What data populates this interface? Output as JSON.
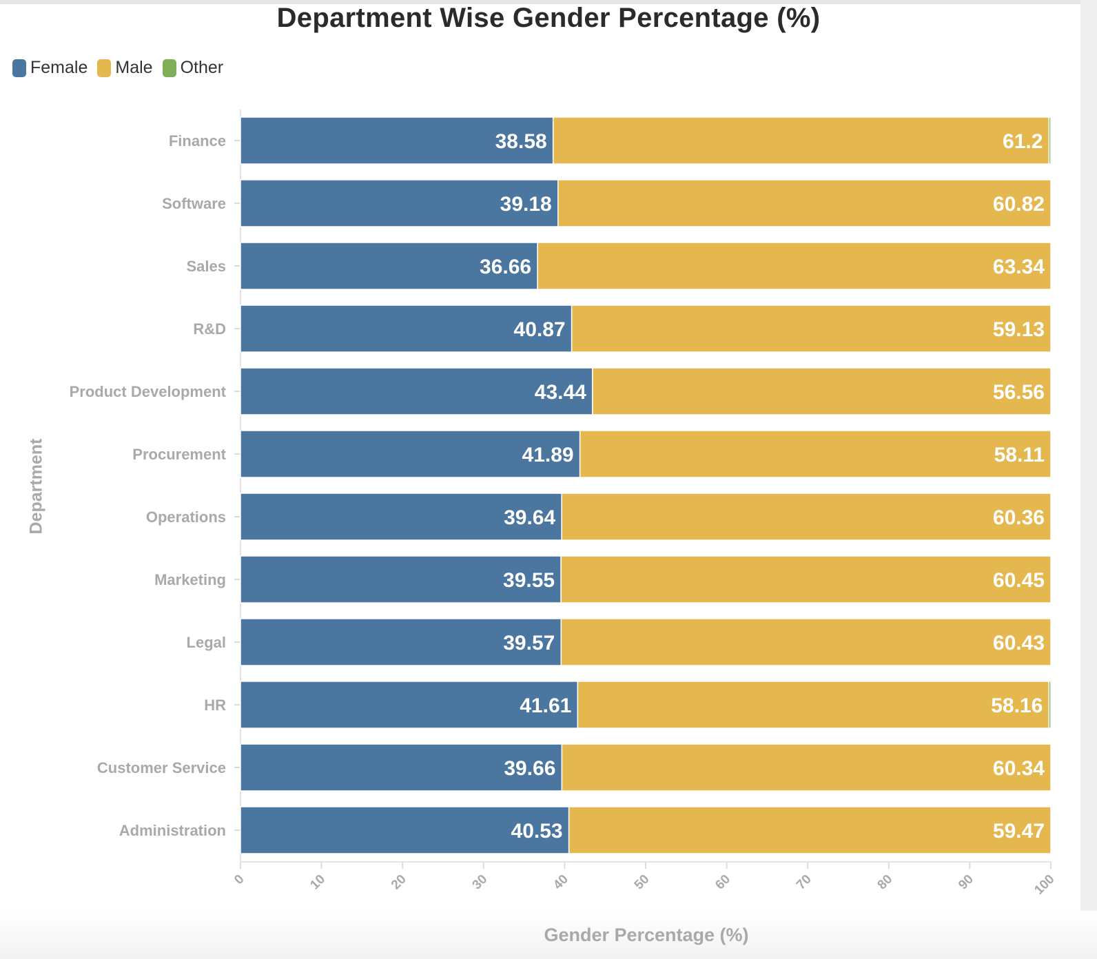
{
  "title": "Department Wise Gender Percentage (%)",
  "legend": [
    {
      "label": "Female",
      "color": "#4a76a0"
    },
    {
      "label": "Male",
      "color": "#e5b84f"
    },
    {
      "label": "Other",
      "color": "#7fae58"
    }
  ],
  "chart_data": {
    "type": "bar",
    "orientation": "horizontal",
    "stacked": true,
    "title": "Department Wise Gender Percentage (%)",
    "xlabel": "Gender Percentage (%)",
    "ylabel": "Department",
    "xlim": [
      0,
      100
    ],
    "xticks": [
      "0",
      "10",
      "20",
      "30",
      "40",
      "50",
      "60",
      "70",
      "80",
      "90",
      "100"
    ],
    "legend_position": "top-left",
    "grid": false,
    "categories": [
      "Finance",
      "Software",
      "Sales",
      "R&D",
      "Product Development",
      "Procurement",
      "Operations",
      "Marketing",
      "Legal",
      "HR",
      "Customer Service",
      "Administration"
    ],
    "series": [
      {
        "name": "Female",
        "color": "#4a76a0",
        "values": [
          38.58,
          39.18,
          36.66,
          40.87,
          43.44,
          41.89,
          39.64,
          39.55,
          39.57,
          41.61,
          39.66,
          40.53
        ],
        "labels": [
          "38.58",
          "39.18",
          "36.66",
          "40.87",
          "43.44",
          "41.89",
          "39.64",
          "39.55",
          "39.57",
          "41.61",
          "39.66",
          "40.53"
        ]
      },
      {
        "name": "Male",
        "color": "#e5b84f",
        "values": [
          61.2,
          60.82,
          63.34,
          59.13,
          56.56,
          58.11,
          60.36,
          60.45,
          60.43,
          58.16,
          60.34,
          59.47
        ],
        "labels": [
          "61.2",
          "60.82",
          "63.34",
          "59.13",
          "56.56",
          "58.11",
          "60.36",
          "60.45",
          "60.43",
          "58.16",
          "60.34",
          "59.47"
        ]
      },
      {
        "name": "Other",
        "color": "#7fae58",
        "values": [
          0.22,
          0,
          0,
          0,
          0,
          0,
          0,
          0,
          0,
          0.23,
          0,
          0
        ],
        "labels": []
      }
    ]
  }
}
